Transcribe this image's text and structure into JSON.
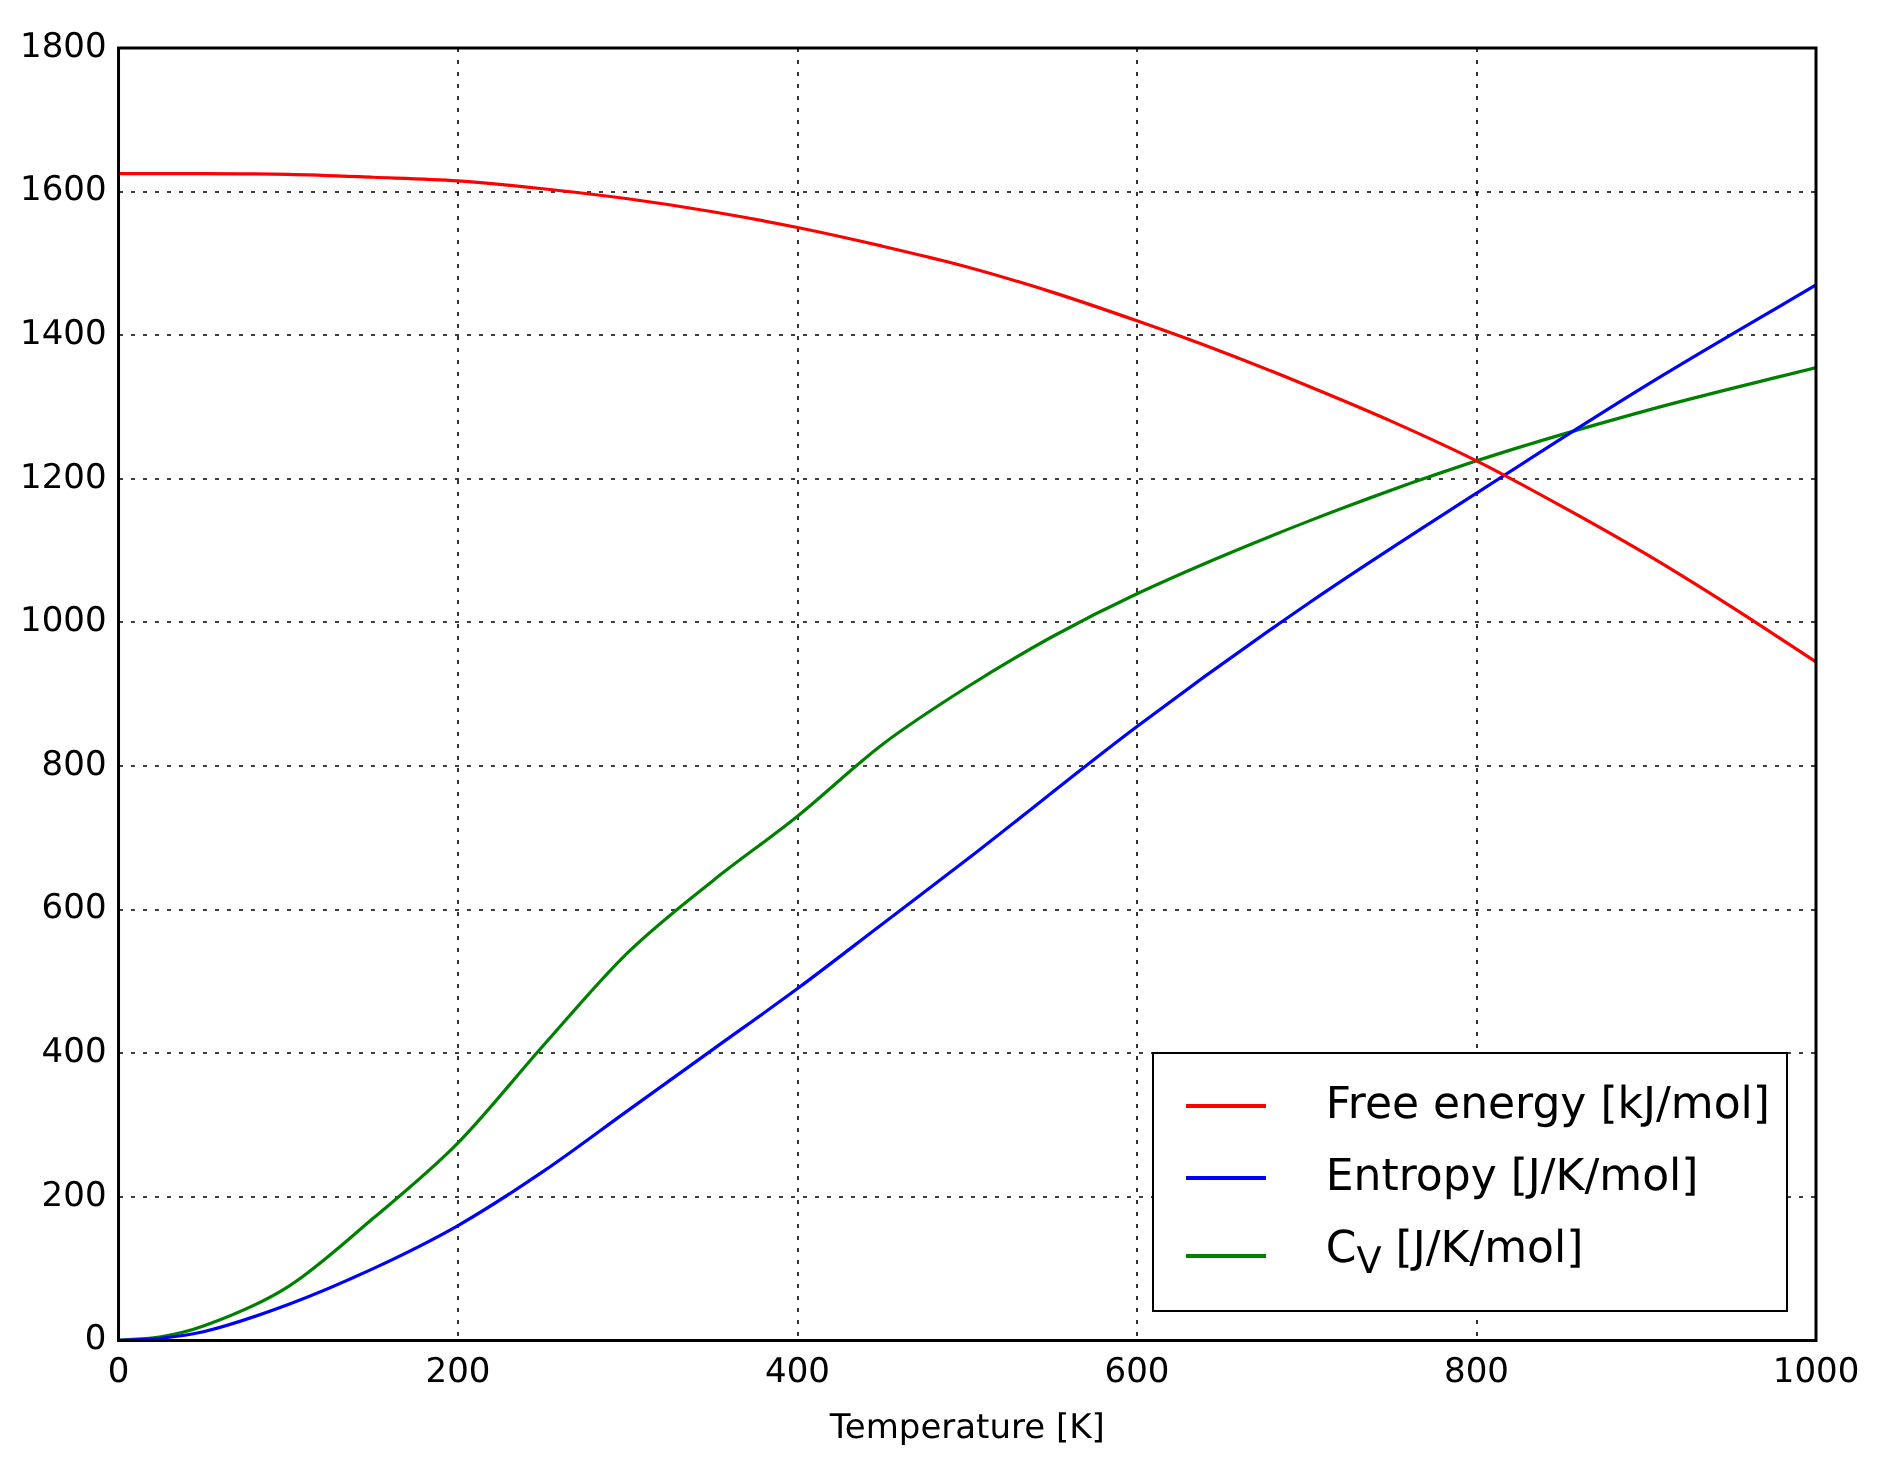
{
  "chart_data": {
    "type": "line",
    "xlabel": "Temperature [K]",
    "xlim": [
      0,
      1000
    ],
    "xticks": [
      0,
      200,
      400,
      600,
      800,
      1000
    ],
    "ylim": [
      0,
      1800
    ],
    "yticks": [
      0,
      200,
      400,
      600,
      800,
      1000,
      1200,
      1400,
      1600,
      1800
    ],
    "grid": true,
    "legend": "bottom right",
    "marker": "none",
    "line_style": "solid",
    "series": [
      {
        "name": "Free energy [kJ/mol]",
        "color": "#ff0000",
        "x": [
          0,
          50,
          100,
          150,
          200,
          250,
          300,
          350,
          400,
          450,
          500,
          550,
          600,
          650,
          700,
          750,
          800,
          850,
          900,
          950,
          1000
        ],
        "values": [
          1625,
          1625,
          1624,
          1620,
          1615,
          1604,
          1590,
          1572,
          1550,
          1524,
          1495,
          1460,
          1420,
          1377,
          1330,
          1280,
          1225,
          1162,
          1095,
          1022,
          945
        ]
      },
      {
        "name": "Entropy [J/K/mol]",
        "color": "#0000ff",
        "x": [
          0,
          25,
          50,
          100,
          150,
          200,
          250,
          300,
          350,
          400,
          450,
          500,
          600,
          700,
          800,
          900,
          1000
        ],
        "values": [
          0,
          3,
          12,
          50,
          100,
          160,
          235,
          320,
          405,
          490,
          580,
          670,
          855,
          1025,
          1180,
          1330,
          1470
        ]
      },
      {
        "name": "C$_{V}$ [J/K/mol]",
        "color": "#008000",
        "x": [
          0,
          25,
          50,
          100,
          150,
          200,
          250,
          300,
          350,
          400,
          450,
          500,
          550,
          600,
          700,
          800,
          900,
          1000
        ],
        "values": [
          0,
          5,
          20,
          75,
          170,
          275,
          410,
          540,
          640,
          730,
          830,
          910,
          980,
          1040,
          1140,
          1225,
          1295,
          1355
        ]
      }
    ]
  }
}
